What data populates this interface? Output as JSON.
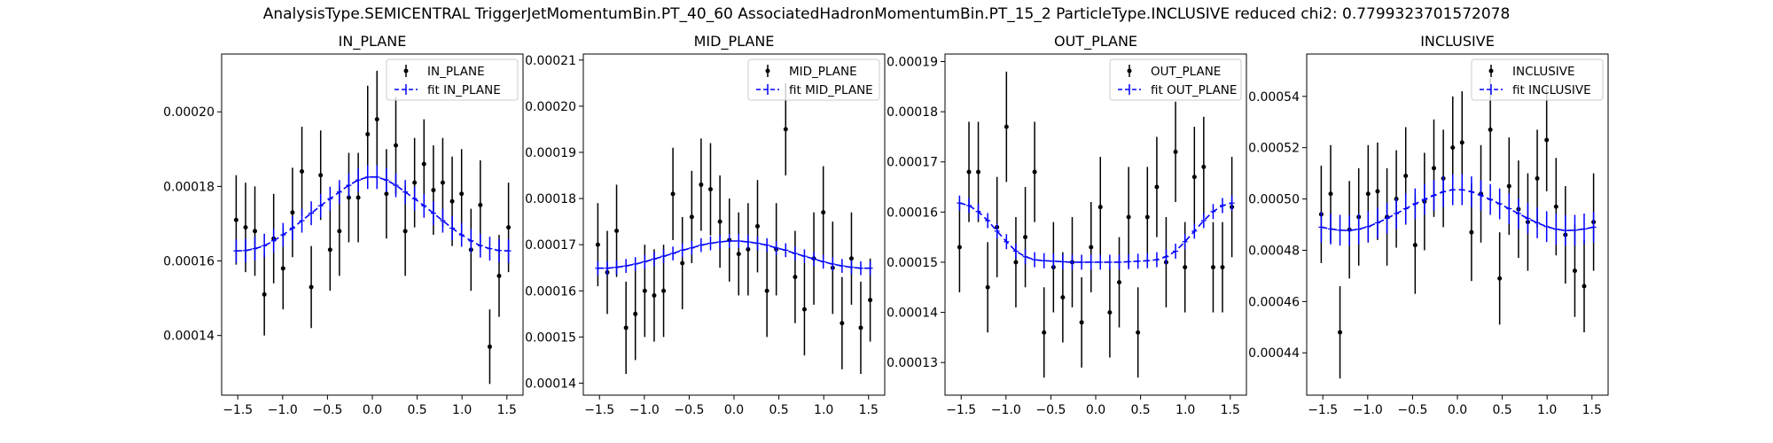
{
  "figure": {
    "suptitle": "AnalysisType.SEMICENTRAL TriggerJetMomentumBin.PT_40_60 AssociatedHadronMomentumBin.PT_15_2 ParticleType.INCLUSIVE reduced chi2: 0.7799323701572078"
  },
  "colors": {
    "data": "#000000",
    "fit": "#0000ff"
  },
  "chart_data": [
    {
      "type": "scatter",
      "title": "IN_PLANE",
      "xlabel": "",
      "ylabel": "",
      "xlim": [
        -1.68,
        1.68
      ],
      "ylim": [
        0.000124,
        0.0002155
      ],
      "xticks": [
        -1.5,
        -1.0,
        -0.5,
        0.0,
        0.5,
        1.0,
        1.5
      ],
      "xtick_labels": [
        "−1.5",
        "−1.0",
        "−0.5",
        "0.0",
        "0.5",
        "1.0",
        "1.5"
      ],
      "yticks": [
        0.00014,
        0.00016,
        0.00018,
        0.0002
      ],
      "ytick_labels": [
        "0.00014",
        "0.00016",
        "0.00018",
        "0.00020"
      ],
      "grid": false,
      "legend_position": "top-right",
      "series": [
        {
          "name": "IN_PLANE",
          "kind": "data",
          "x": [
            -1.518,
            -1.413,
            -1.309,
            -1.204,
            -1.1,
            -0.995,
            -0.89,
            -0.785,
            -0.681,
            -0.576,
            -0.471,
            -0.367,
            -0.262,
            -0.157,
            -0.052,
            0.052,
            0.157,
            0.262,
            0.367,
            0.471,
            0.576,
            0.681,
            0.785,
            0.89,
            0.995,
            1.1,
            1.204,
            1.309,
            1.413,
            1.518
          ],
          "y": [
            0.000171,
            0.000169,
            0.000168,
            0.000151,
            0.000166,
            0.000158,
            0.000173,
            0.000184,
            0.000153,
            0.000183,
            0.000163,
            0.000168,
            0.000177,
            0.000177,
            0.000194,
            0.000198,
            0.000178,
            0.000191,
            0.000168,
            0.000181,
            0.000186,
            0.000179,
            0.000181,
            0.000176,
            0.000178,
            0.000163,
            0.000175,
            0.000137,
            0.000156,
            0.000169
          ],
          "yerr": [
            1.2e-05,
            1.2e-05,
            1.2e-05,
            1.1e-05,
            1.2e-05,
            1.1e-05,
            1.2e-05,
            1.2e-05,
            1.1e-05,
            1.2e-05,
            1.1e-05,
            1.2e-05,
            1.2e-05,
            1.2e-05,
            1.3e-05,
            1.3e-05,
            1.2e-05,
            1.3e-05,
            1.2e-05,
            1.2e-05,
            1.2e-05,
            1.2e-05,
            1.2e-05,
            1.2e-05,
            1.2e-05,
            1.1e-05,
            1.2e-05,
            1e-05,
            1.1e-05,
            1.2e-05
          ]
        },
        {
          "name": "fit IN_PLANE",
          "kind": "fit",
          "x": [
            -1.518,
            -1.413,
            -1.309,
            -1.204,
            -1.1,
            -0.995,
            -0.89,
            -0.785,
            -0.681,
            -0.576,
            -0.471,
            -0.367,
            -0.262,
            -0.157,
            -0.052,
            0.052,
            0.157,
            0.262,
            0.367,
            0.471,
            0.576,
            0.681,
            0.785,
            0.89,
            0.995,
            1.1,
            1.204,
            1.309,
            1.413,
            1.518
          ],
          "y": [
            0.0001627,
            0.0001628,
            0.0001633,
            0.0001641,
            0.0001654,
            0.000167,
            0.0001688,
            0.0001708,
            0.0001728,
            0.0001748,
            0.0001767,
            0.0001785,
            0.0001803,
            0.0001817,
            0.0001825,
            0.0001825,
            0.0001817,
            0.0001803,
            0.0001785,
            0.0001767,
            0.0001748,
            0.0001728,
            0.0001708,
            0.0001688,
            0.000167,
            0.0001654,
            0.0001641,
            0.0001633,
            0.0001628,
            0.0001627
          ],
          "yerr": [
            3.2e-06,
            3.2e-06,
            3.2e-06,
            3.2e-06,
            3.2e-06,
            3.2e-06,
            3.2e-06,
            3.2e-06,
            3.2e-06,
            3.2e-06,
            3.2e-06,
            3.2e-06,
            3.2e-06,
            3.2e-06,
            3.2e-06,
            3.2e-06,
            3.2e-06,
            3.2e-06,
            3.2e-06,
            3.2e-06,
            3.2e-06,
            3.2e-06,
            3.2e-06,
            3.2e-06,
            3.2e-06,
            3.2e-06,
            3.2e-06,
            3.2e-06,
            3.2e-06,
            3.2e-06
          ]
        }
      ]
    },
    {
      "type": "scatter",
      "title": "MID_PLANE",
      "xlabel": "",
      "ylabel": "",
      "xlim": [
        -1.68,
        1.68
      ],
      "ylim": [
        0.0001374,
        0.0002113
      ],
      "xticks": [
        -1.5,
        -1.0,
        -0.5,
        0.0,
        0.5,
        1.0,
        1.5
      ],
      "xtick_labels": [
        "−1.5",
        "−1.0",
        "−0.5",
        "0.0",
        "0.5",
        "1.0",
        "1.5"
      ],
      "yticks": [
        0.00014,
        0.00015,
        0.00016,
        0.00017,
        0.00018,
        0.00019,
        0.0002,
        0.00021
      ],
      "ytick_labels": [
        "0.00014",
        "0.00015",
        "0.00016",
        "0.00017",
        "0.00018",
        "0.00019",
        "0.00020",
        "0.00021"
      ],
      "grid": false,
      "legend_position": "top-right",
      "series": [
        {
          "name": "MID_PLANE",
          "kind": "data",
          "x": [
            -1.518,
            -1.413,
            -1.309,
            -1.204,
            -1.1,
            -0.995,
            -0.89,
            -0.785,
            -0.681,
            -0.576,
            -0.471,
            -0.367,
            -0.262,
            -0.157,
            -0.052,
            0.052,
            0.157,
            0.262,
            0.367,
            0.471,
            0.576,
            0.681,
            0.785,
            0.89,
            0.995,
            1.1,
            1.204,
            1.309,
            1.413,
            1.518
          ],
          "y": [
            0.00017,
            0.000164,
            0.000173,
            0.000152,
            0.000155,
            0.00016,
            0.000159,
            0.00016,
            0.000181,
            0.000166,
            0.000176,
            0.000183,
            0.000182,
            0.000175,
            0.000171,
            0.000168,
            0.000169,
            0.000174,
            0.00016,
            0.000169,
            0.000195,
            0.000163,
            0.000156,
            0.000167,
            0.000177,
            0.000165,
            0.000153,
            0.000167,
            0.000152,
            0.000158
          ],
          "yerr": [
            9e-06,
            9e-06,
            1e-05,
            1e-05,
            1e-05,
            1e-05,
            1e-05,
            1e-05,
            1e-05,
            1e-05,
            1e-05,
            1e-05,
            1e-05,
            1e-05,
            9e-06,
            9e-06,
            1e-05,
            1e-05,
            1e-05,
            1e-05,
            1e-05,
            1e-05,
            1e-05,
            1e-05,
            1e-05,
            1e-05,
            1e-05,
            1e-05,
            1e-05,
            9e-06
          ]
        },
        {
          "name": "fit MID_PLANE",
          "kind": "fit",
          "x": [
            -1.518,
            -1.413,
            -1.309,
            -1.204,
            -1.1,
            -0.995,
            -0.89,
            -0.785,
            -0.681,
            -0.576,
            -0.471,
            -0.367,
            -0.262,
            -0.157,
            -0.052,
            0.052,
            0.157,
            0.262,
            0.367,
            0.471,
            0.576,
            0.681,
            0.785,
            0.89,
            0.995,
            1.1,
            1.204,
            1.309,
            1.413,
            1.518
          ],
          "y": [
            0.0001649,
            0.0001649,
            0.0001651,
            0.0001654,
            0.0001658,
            0.0001663,
            0.0001669,
            0.0001675,
            0.0001681,
            0.0001688,
            0.0001693,
            0.0001699,
            0.0001703,
            0.0001706,
            0.0001708,
            0.0001708,
            0.0001706,
            0.0001703,
            0.0001699,
            0.0001693,
            0.0001688,
            0.0001681,
            0.0001675,
            0.0001669,
            0.0001663,
            0.0001658,
            0.0001654,
            0.0001651,
            0.0001649,
            0.0001649
          ],
          "yerr": [
            1.5e-06,
            1.5e-06,
            1.5e-06,
            1.5e-06,
            1.5e-06,
            1.5e-06,
            1.5e-06,
            1.5e-06,
            1.5e-06,
            1.5e-06,
            1.5e-06,
            1.5e-06,
            1.5e-06,
            1.5e-06,
            1.5e-06,
            1.5e-06,
            1.5e-06,
            1.5e-06,
            1.5e-06,
            1.5e-06,
            1.5e-06,
            1.5e-06,
            1.5e-06,
            1.5e-06,
            1.5e-06,
            1.5e-06,
            1.5e-06,
            1.5e-06,
            1.5e-06,
            1.5e-06
          ]
        }
      ]
    },
    {
      "type": "scatter",
      "title": "OUT_PLANE",
      "xlabel": "",
      "ylabel": "",
      "xlim": [
        -1.68,
        1.68
      ],
      "ylim": [
        0.0001235,
        0.0001915
      ],
      "xticks": [
        -1.5,
        -1.0,
        -0.5,
        0.0,
        0.5,
        1.0,
        1.5
      ],
      "xtick_labels": [
        "−1.5",
        "−1.0",
        "−0.5",
        "0.0",
        "0.5",
        "1.0",
        "1.5"
      ],
      "yticks": [
        0.00013,
        0.00014,
        0.00015,
        0.00016,
        0.00017,
        0.00018,
        0.00019
      ],
      "ytick_labels": [
        "0.00013",
        "0.00014",
        "0.00015",
        "0.00016",
        "0.00017",
        "0.00018",
        "0.00019"
      ],
      "grid": false,
      "legend_position": "top-right",
      "series": [
        {
          "name": "OUT_PLANE",
          "kind": "data",
          "x": [
            -1.518,
            -1.413,
            -1.309,
            -1.204,
            -1.1,
            -0.995,
            -0.89,
            -0.785,
            -0.681,
            -0.576,
            -0.471,
            -0.367,
            -0.262,
            -0.157,
            -0.052,
            0.052,
            0.157,
            0.262,
            0.367,
            0.471,
            0.576,
            0.681,
            0.785,
            0.89,
            0.995,
            1.1,
            1.204,
            1.309,
            1.413,
            1.518
          ],
          "y": [
            0.000153,
            0.000168,
            0.000168,
            0.000145,
            0.000157,
            0.000177,
            0.00015,
            0.000155,
            0.000168,
            0.000136,
            0.000149,
            0.000143,
            0.00015,
            0.000138,
            0.000153,
            0.000161,
            0.00014,
            0.000146,
            0.000159,
            0.000136,
            0.000159,
            0.000165,
            0.00015,
            0.000172,
            0.000149,
            0.000167,
            0.000169,
            0.000149,
            0.000149,
            0.000161
          ],
          "yerr": [
            9e-06,
            1e-05,
            1e-05,
            9e-06,
            1e-05,
            1.1e-05,
            9e-06,
            1e-05,
            1e-05,
            9e-06,
            9e-06,
            9e-06,
            9e-06,
            9e-06,
            9e-06,
            1e-05,
            9e-06,
            9e-06,
            1e-05,
            9e-06,
            1e-05,
            1e-05,
            9e-06,
            1e-05,
            9e-06,
            1e-05,
            1e-05,
            9e-06,
            9e-06,
            1e-05
          ]
        },
        {
          "name": "fit OUT_PLANE",
          "kind": "fit",
          "x": [
            -1.518,
            -1.413,
            -1.309,
            -1.204,
            -1.1,
            -0.995,
            -0.89,
            -0.785,
            -0.681,
            -0.576,
            -0.471,
            -0.367,
            -0.262,
            -0.157,
            -0.052,
            0.052,
            0.157,
            0.262,
            0.367,
            0.471,
            0.576,
            0.681,
            0.785,
            0.89,
            0.995,
            1.1,
            1.204,
            1.309,
            1.413,
            1.518
          ],
          "y": [
            0.0001618,
            0.0001613,
            0.0001601,
            0.0001583,
            0.0001562,
            0.0001541,
            0.0001522,
            0.0001511,
            0.0001505,
            0.0001503,
            0.0001502,
            0.0001501,
            0.00015,
            0.00015,
            0.00015,
            0.00015,
            0.00015,
            0.00015,
            0.0001501,
            0.0001502,
            0.0001503,
            0.0001505,
            0.0001511,
            0.0001522,
            0.0001541,
            0.0001562,
            0.0001583,
            0.0001601,
            0.0001613,
            0.0001618
          ],
          "yerr": [
            1.5e-06,
            1.5e-06,
            1.5e-06,
            1.5e-06,
            1.5e-06,
            1.5e-06,
            1.5e-06,
            1.5e-06,
            1.5e-06,
            1.5e-06,
            1.5e-06,
            1.5e-06,
            1.5e-06,
            1.5e-06,
            1.5e-06,
            1.5e-06,
            1.5e-06,
            1.5e-06,
            1.5e-06,
            1.5e-06,
            1.5e-06,
            1.5e-06,
            1.5e-06,
            1.5e-06,
            1.5e-06,
            1.5e-06,
            1.5e-06,
            1.5e-06,
            1.5e-06,
            1.5e-06
          ]
        }
      ]
    },
    {
      "type": "scatter",
      "title": "INCLUSIVE",
      "xlabel": "",
      "ylabel": "",
      "xlim": [
        -1.68,
        1.68
      ],
      "ylim": [
        0.0004235,
        0.0005565
      ],
      "xticks": [
        -1.5,
        -1.0,
        -0.5,
        0.0,
        0.5,
        1.0,
        1.5
      ],
      "xtick_labels": [
        "−1.5",
        "−1.0",
        "−0.5",
        "0.0",
        "0.5",
        "1.0",
        "1.5"
      ],
      "yticks": [
        0.00044,
        0.00046,
        0.00048,
        0.0005,
        0.00052,
        0.00054
      ],
      "ytick_labels": [
        "0.00044",
        "0.00046",
        "0.00048",
        "0.00050",
        "0.00052",
        "0.00054"
      ],
      "grid": false,
      "legend_position": "top-right",
      "series": [
        {
          "name": "INCLUSIVE",
          "kind": "data",
          "x": [
            -1.518,
            -1.413,
            -1.309,
            -1.204,
            -1.1,
            -0.995,
            -0.89,
            -0.785,
            -0.681,
            -0.576,
            -0.471,
            -0.367,
            -0.262,
            -0.157,
            -0.052,
            0.052,
            0.157,
            0.262,
            0.367,
            0.471,
            0.576,
            0.681,
            0.785,
            0.89,
            0.995,
            1.1,
            1.204,
            1.309,
            1.413,
            1.518
          ],
          "y": [
            0.000494,
            0.000502,
            0.000448,
            0.000488,
            0.000493,
            0.000502,
            0.000503,
            0.000493,
            0.0005,
            0.000509,
            0.000482,
            0.000499,
            0.000512,
            0.000508,
            0.00052,
            0.000522,
            0.000487,
            0.000502,
            0.000527,
            0.000469,
            0.000505,
            0.000496,
            0.000491,
            0.000508,
            0.000523,
            0.000497,
            0.000486,
            0.000472,
            0.000466,
            0.000491
          ],
          "yerr": [
            1.9e-05,
            1.9e-05,
            1.8e-05,
            1.9e-05,
            1.9e-05,
            1.9e-05,
            1.9e-05,
            1.9e-05,
            1.9e-05,
            1.9e-05,
            1.9e-05,
            1.9e-05,
            1.9e-05,
            1.9e-05,
            2e-05,
            2e-05,
            1.9e-05,
            1.9e-05,
            2e-05,
            1.8e-05,
            1.9e-05,
            1.9e-05,
            1.9e-05,
            1.9e-05,
            2e-05,
            1.9e-05,
            1.9e-05,
            1.8e-05,
            1.8e-05,
            1.9e-05
          ]
        },
        {
          "name": "fit INCLUSIVE",
          "kind": "fit",
          "x": [
            -1.518,
            -1.413,
            -1.309,
            -1.204,
            -1.1,
            -0.995,
            -0.89,
            -0.785,
            -0.681,
            -0.576,
            -0.471,
            -0.367,
            -0.262,
            -0.157,
            -0.052,
            0.052,
            0.157,
            0.262,
            0.367,
            0.471,
            0.576,
            0.681,
            0.785,
            0.89,
            0.995,
            1.1,
            1.204,
            1.309,
            1.413,
            1.518
          ],
          "y": [
            0.000489,
            0.0004883,
            0.0004878,
            0.0004877,
            0.0004882,
            0.0004892,
            0.0004907,
            0.0004924,
            0.0004943,
            0.0004962,
            0.0004981,
            0.0004998,
            0.0005014,
            0.0005028,
            0.0005036,
            0.0005036,
            0.0005028,
            0.0005014,
            0.0004998,
            0.0004981,
            0.0004962,
            0.0004943,
            0.0004924,
            0.0004907,
            0.0004892,
            0.0004882,
            0.0004877,
            0.0004878,
            0.0004883,
            0.000489
          ],
          "yerr": [
            6e-06,
            6e-06,
            6e-06,
            6e-06,
            6e-06,
            6e-06,
            6e-06,
            6e-06,
            6e-06,
            6e-06,
            6e-06,
            6e-06,
            6e-06,
            6e-06,
            6e-06,
            6e-06,
            6e-06,
            6e-06,
            6e-06,
            6e-06,
            6e-06,
            6e-06,
            6e-06,
            6e-06,
            6e-06,
            6e-06,
            6e-06,
            6e-06,
            6e-06,
            6e-06
          ]
        }
      ]
    }
  ]
}
